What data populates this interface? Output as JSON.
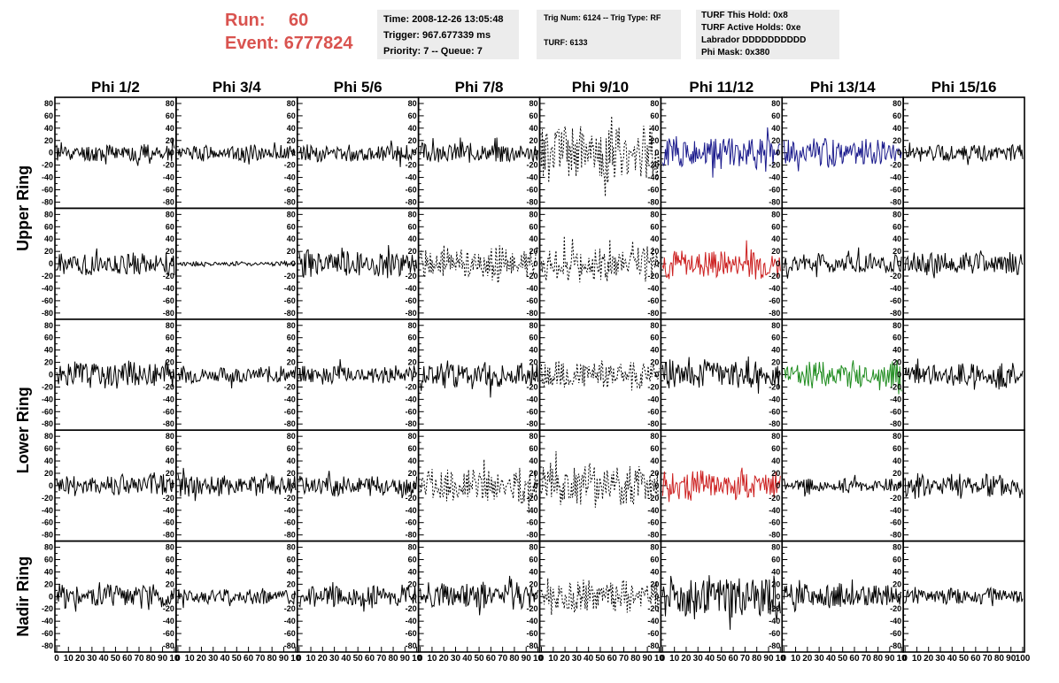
{
  "header": {
    "run_label": "Run:",
    "run_value": "60",
    "event_label": "Event:",
    "event_value": "6777824"
  },
  "info_time": {
    "time": "Time: 2008-12-26 13:05:48",
    "trigger": "Trigger: 967.677339 ms",
    "priority": "Priority: 7 -- Queue: 7"
  },
  "info_trig": {
    "trig": "Trig Num: 6124 -- Trig Type: RF",
    "turf": "TURF: 6133"
  },
  "info_turf": {
    "hold": "TURF This Hold: 0x8",
    "active": "TURF Active Holds: 0xe",
    "labrador": "Labrador DDDDDDDDDD",
    "phimask": "Phi Mask: 0x380"
  },
  "colors": {
    "header_red": "#d9534f",
    "trace_default": "#000000",
    "trace_blue": "#1a1a8c",
    "trace_red": "#cc2020",
    "trace_green": "#1e8c1e",
    "info_bg": "#ececec"
  },
  "chart_data": {
    "type": "line",
    "phi_columns": [
      "Phi 1/2",
      "Phi 3/4",
      "Phi 5/6",
      "Phi 7/8",
      "Phi 9/10",
      "Phi 11/12",
      "Phi 13/14",
      "Phi 15/16"
    ],
    "ring_labels": [
      "Upper Ring",
      "Lower Ring",
      "Nadir Ring"
    ],
    "ylim": [
      -90,
      90
    ],
    "y_ticks": [
      80,
      60,
      40,
      20,
      0,
      -20,
      -40,
      -60,
      -80
    ],
    "xlim": [
      0,
      100
    ],
    "x_tick_label_groups": [
      [
        "0",
        "10",
        "20",
        "30",
        "40",
        "50",
        "60",
        "70",
        "80",
        "90",
        "10"
      ],
      [
        "0",
        "10",
        "20",
        "30",
        "40",
        "50",
        "60",
        "70",
        "80",
        "90",
        "10"
      ],
      [
        "0",
        "10",
        "20",
        "30",
        "40",
        "50",
        "60",
        "70",
        "80",
        "90",
        "10"
      ],
      [
        "0",
        "10",
        "20",
        "30",
        "40",
        "50",
        "60",
        "70",
        "80",
        "90",
        "10"
      ],
      [
        "0",
        "10",
        "20",
        "30",
        "40",
        "50",
        "60",
        "70",
        "80",
        "90",
        "10"
      ],
      [
        "0",
        "10",
        "20",
        "30",
        "40",
        "50",
        "60",
        "70",
        "80",
        "90",
        "10"
      ],
      [
        "0",
        "10",
        "20",
        "30",
        "40",
        "50",
        "60",
        "70",
        "80",
        "90",
        "10"
      ],
      [
        "0",
        "10",
        "20",
        "30",
        "40",
        "50",
        "60",
        "70",
        "80",
        "90",
        "100"
      ]
    ],
    "panels": [
      [
        {
          "amp": 16,
          "style": "solid",
          "color": "black",
          "seed": 11
        },
        {
          "amp": 14,
          "style": "solid",
          "color": "black",
          "seed": 12
        },
        {
          "amp": 15,
          "style": "solid",
          "color": "black",
          "seed": 13
        },
        {
          "amp": 18,
          "style": "solid",
          "color": "black",
          "seed": 14
        },
        {
          "amp": 50,
          "style": "dotted",
          "color": "black",
          "seed": 15
        },
        {
          "amp": 28,
          "style": "solid",
          "color": "blue",
          "seed": 16
        },
        {
          "amp": 24,
          "style": "solid",
          "color": "blue",
          "seed": 17
        },
        {
          "amp": 15,
          "style": "solid",
          "color": "black",
          "seed": 18
        }
      ],
      [
        {
          "amp": 20,
          "style": "solid",
          "color": "black",
          "seed": 21
        },
        {
          "amp": 4,
          "style": "solid",
          "color": "black",
          "seed": 22
        },
        {
          "amp": 24,
          "style": "solid",
          "color": "black",
          "seed": 23
        },
        {
          "amp": 28,
          "style": "dotted",
          "color": "black",
          "seed": 24
        },
        {
          "amp": 30,
          "style": "dotted",
          "color": "black",
          "seed": 25
        },
        {
          "amp": 26,
          "style": "solid",
          "color": "red",
          "seed": 26
        },
        {
          "amp": 18,
          "style": "solid",
          "color": "black",
          "seed": 27
        },
        {
          "amp": 20,
          "style": "solid",
          "color": "black",
          "seed": 28
        }
      ],
      [
        {
          "amp": 24,
          "style": "solid",
          "color": "black",
          "seed": 31
        },
        {
          "amp": 14,
          "style": "solid",
          "color": "black",
          "seed": 32
        },
        {
          "amp": 16,
          "style": "solid",
          "color": "black",
          "seed": 33
        },
        {
          "amp": 24,
          "style": "solid",
          "color": "black",
          "seed": 34
        },
        {
          "amp": 24,
          "style": "dotted",
          "color": "black",
          "seed": 35
        },
        {
          "amp": 26,
          "style": "solid",
          "color": "black",
          "seed": 36
        },
        {
          "amp": 24,
          "style": "solid",
          "color": "green",
          "seed": 37
        },
        {
          "amp": 20,
          "style": "solid",
          "color": "black",
          "seed": 38
        }
      ],
      [
        {
          "amp": 20,
          "style": "solid",
          "color": "black",
          "seed": 41
        },
        {
          "amp": 20,
          "style": "solid",
          "color": "black",
          "seed": 42
        },
        {
          "amp": 18,
          "style": "solid",
          "color": "black",
          "seed": 43
        },
        {
          "amp": 30,
          "style": "dotted",
          "color": "black",
          "seed": 44
        },
        {
          "amp": 38,
          "style": "dotted",
          "color": "black",
          "seed": 45
        },
        {
          "amp": 26,
          "style": "solid",
          "color": "red",
          "seed": 46
        },
        {
          "amp": 12,
          "style": "solid",
          "color": "black",
          "seed": 47
        },
        {
          "amp": 22,
          "style": "solid",
          "color": "black",
          "seed": 48
        }
      ],
      [
        {
          "amp": 22,
          "style": "solid",
          "color": "black",
          "seed": 51
        },
        {
          "amp": 14,
          "style": "solid",
          "color": "black",
          "seed": 52
        },
        {
          "amp": 20,
          "style": "solid",
          "color": "black",
          "seed": 53
        },
        {
          "amp": 24,
          "style": "solid",
          "color": "black",
          "seed": 54
        },
        {
          "amp": 28,
          "style": "dotted",
          "color": "black",
          "seed": 55
        },
        {
          "amp": 38,
          "style": "solid",
          "color": "black",
          "seed": 56
        },
        {
          "amp": 22,
          "style": "solid",
          "color": "black",
          "seed": 57
        },
        {
          "amp": 14,
          "style": "solid",
          "color": "black",
          "seed": 58
        }
      ]
    ]
  }
}
